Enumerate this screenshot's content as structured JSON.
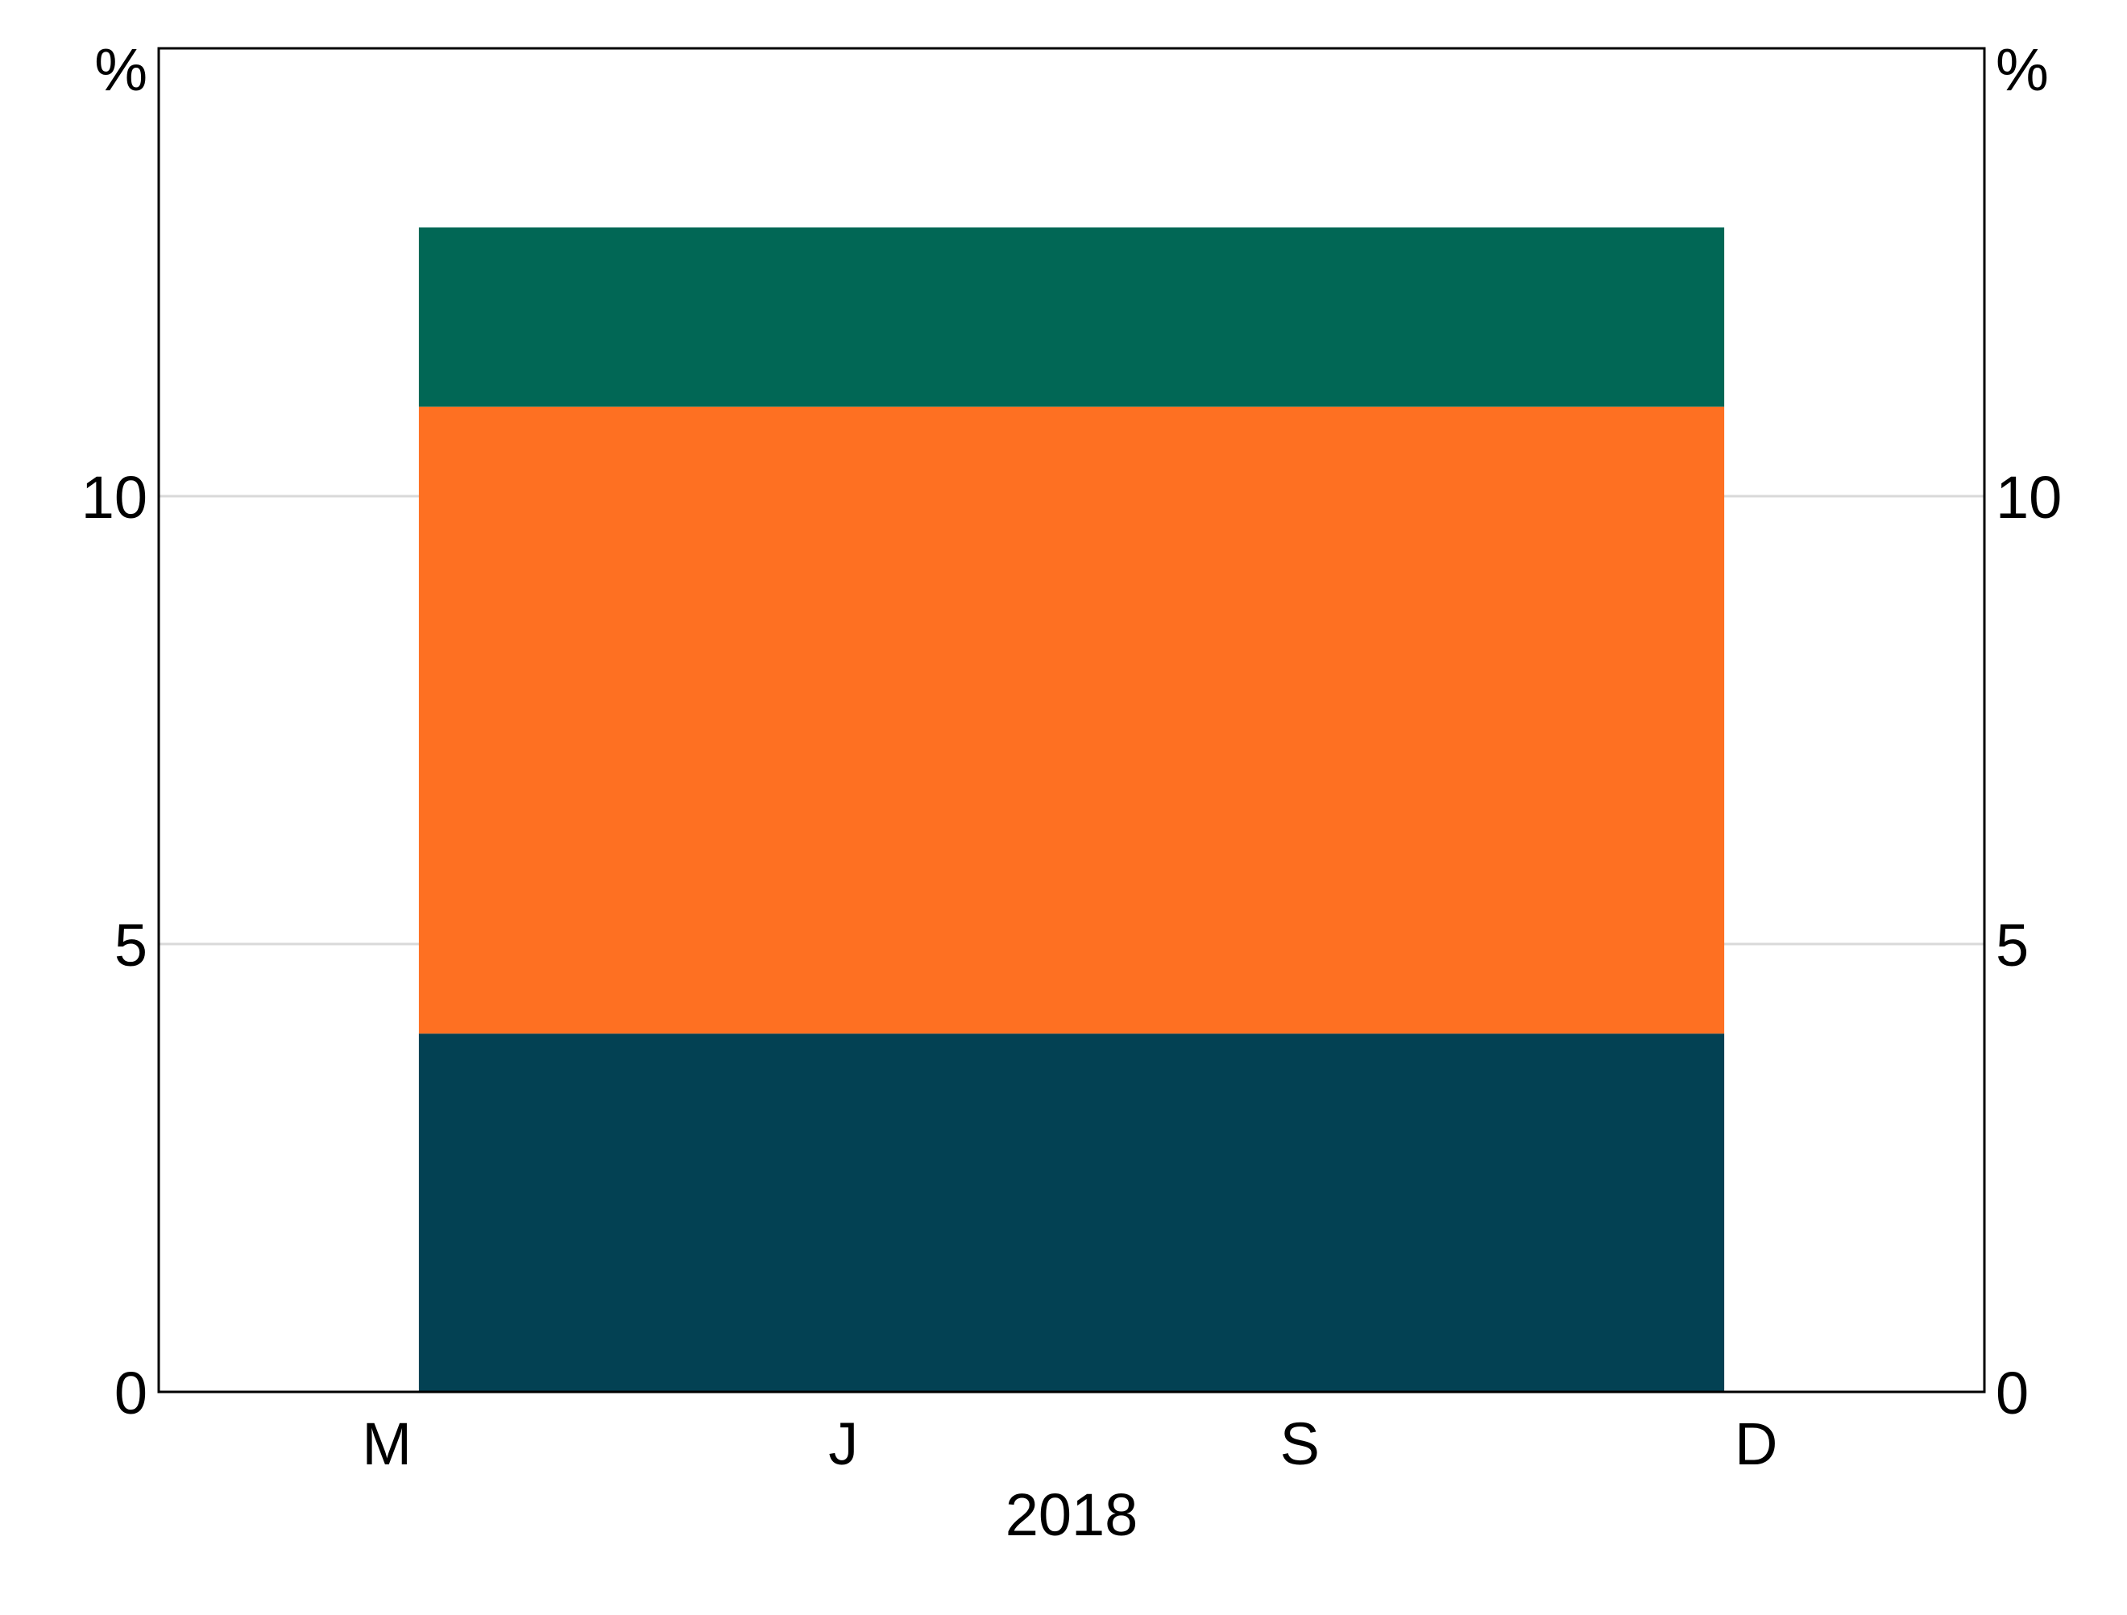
{
  "chart_data": {
    "type": "bar",
    "stacked": true,
    "unit_left": "%",
    "unit_right": "%",
    "ylim": [
      0,
      15
    ],
    "yticks": [
      0,
      5,
      10
    ],
    "ytick_labels": [
      "0",
      "5",
      "10"
    ],
    "grid": true,
    "xlim": [
      0,
      4
    ],
    "x_ticks": [
      {
        "label": "M",
        "pos": 0.5
      },
      {
        "label": "J",
        "pos": 1.5
      },
      {
        "label": "S",
        "pos": 2.5
      },
      {
        "label": "D",
        "pos": 3.5
      }
    ],
    "xlabel": "2018",
    "bar_span": [
      0.57,
      3.43
    ],
    "categories": [
      "2018"
    ],
    "series": [
      {
        "values": [
          4.0
        ],
        "color": "#034153"
      },
      {
        "values": [
          7.0
        ],
        "color": "#FE7022"
      },
      {
        "values": [
          2.0
        ],
        "color": "#016755"
      }
    ],
    "legend": "none"
  }
}
